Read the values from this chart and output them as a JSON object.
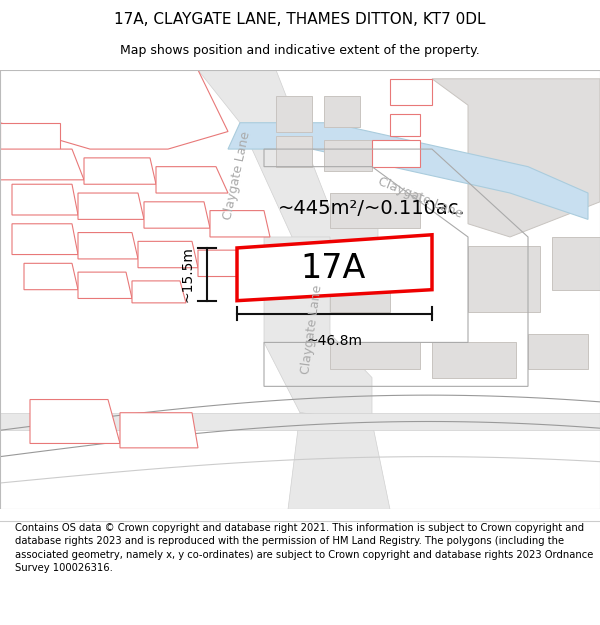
{
  "title_line1": "17A, CLAYGATE LANE, THAMES DITTON, KT7 0DL",
  "title_line2": "Map shows position and indicative extent of the property.",
  "footer_text": "Contains OS data © Crown copyright and database right 2021. This information is subject to Crown copyright and database rights 2023 and is reproduced with the permission of HM Land Registry. The polygons (including the associated geometry, namely x, y co-ordinates) are subject to Crown copyright and database rights 2023 Ordnance Survey 100026316.",
  "area_label": "~445m²/~0.110ac.",
  "width_label": "~46.8m",
  "height_label": "~15.5m",
  "property_label": "17A",
  "map_bg": "#ffffff",
  "road_fill": "#e8e8e8",
  "road_stroke": "#d0d0d0",
  "building_fill": "#e0dedd",
  "building_stroke": "#c8c4c0",
  "pink_fill": "#ffffff",
  "pink_stroke": "#e87878",
  "red_stroke": "#ee0000",
  "water_fill": "#c8dff0",
  "water_stroke": "#aaccdd",
  "lane_text_color": "#aaaaaa",
  "dim_color": "#111111",
  "title_fontsize": 11,
  "subtitle_fontsize": 9,
  "footer_fontsize": 7.2,
  "area_fontsize": 14,
  "property_fontsize": 24,
  "dim_fontsize": 10,
  "lane_fontsize": 9
}
